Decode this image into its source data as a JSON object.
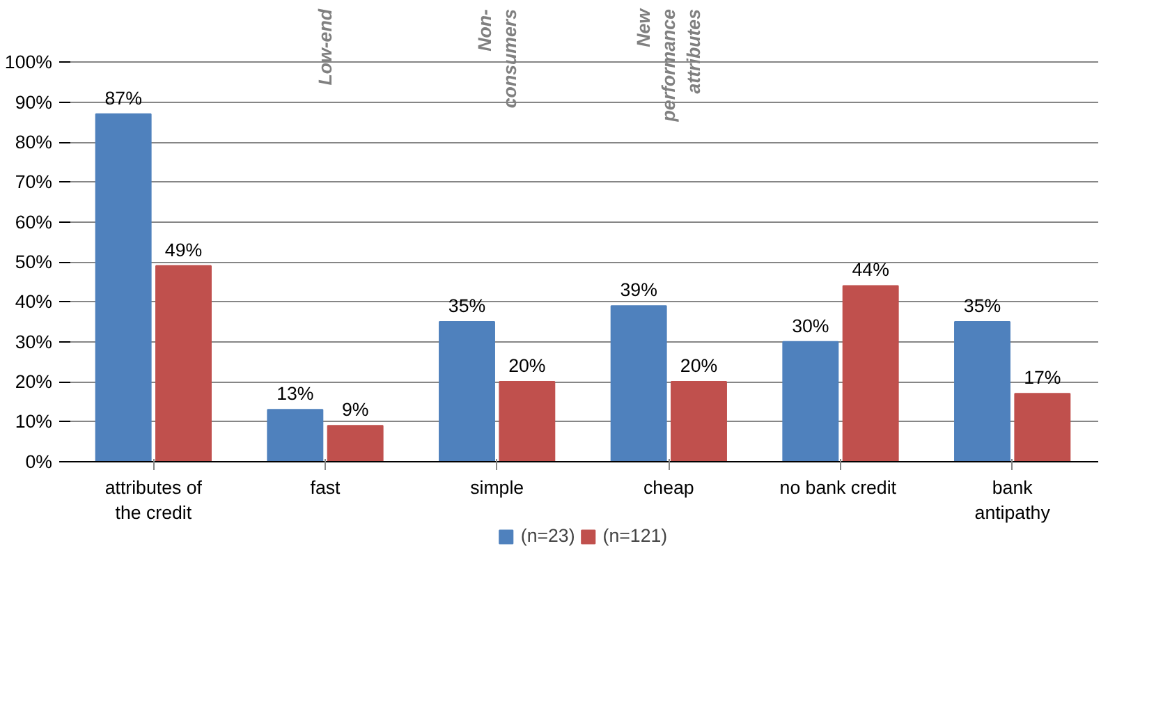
{
  "chart_data": {
    "type": "bar",
    "categories": [
      "attributes of\nthe credit",
      "fast",
      "simple",
      "cheap",
      "no bank  credit",
      "bank\nantipathy"
    ],
    "series": [
      {
        "name": "(n=23)",
        "color": "#4f81bd",
        "values": [
          87,
          13,
          35,
          39,
          30,
          35
        ],
        "value_labels": [
          "87%",
          "13%",
          "35%",
          "39%",
          "30%",
          "35%"
        ]
      },
      {
        "name": "(n=121)",
        "color": "#c0504d",
        "values": [
          49,
          9,
          20,
          20,
          44,
          17
        ],
        "value_labels": [
          "49%",
          "9%",
          "20%",
          "20%",
          "44%",
          "17%"
        ]
      }
    ],
    "ylim": [
      0,
      100
    ],
    "yticks": [
      {
        "value": 0,
        "label": "0%"
      },
      {
        "value": 10,
        "label": "10%"
      },
      {
        "value": 20,
        "label": "20%"
      },
      {
        "value": 30,
        "label": "30%"
      },
      {
        "value": 40,
        "label": "40%"
      },
      {
        "value": 50,
        "label": "50%"
      },
      {
        "value": 60,
        "label": "60%"
      },
      {
        "value": 70,
        "label": "70%"
      },
      {
        "value": 80,
        "label": "80%"
      },
      {
        "value": 90,
        "label": "90%"
      },
      {
        "value": 100,
        "label": "100%"
      }
    ],
    "grid": "y",
    "legend": "bottom",
    "annotations": [
      "Low-end",
      "Non-\nconsumers",
      "New\nperformance\nattributes"
    ]
  }
}
